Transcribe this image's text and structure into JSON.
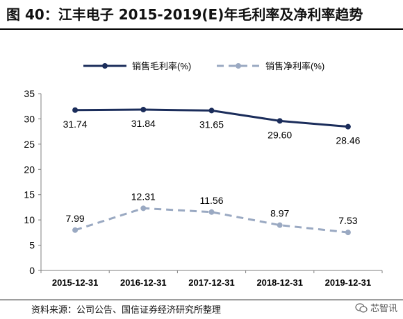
{
  "title": "图 40：江丰电子 2015-2019(E)年毛利率及净利率趋势",
  "source": "资料来源：公司公告、国信证券经济研究所整理",
  "watermark": {
    "text": "芯智讯",
    "icon": "wechat-icon"
  },
  "colors": {
    "gross": "#1b2d5b",
    "net": "#9aa9c2"
  },
  "chart_data": {
    "type": "line",
    "title": "",
    "xlabel": "",
    "ylabel": "",
    "categories": [
      "2015-12-31",
      "2016-12-31",
      "2017-12-31",
      "2018-12-31",
      "2019-12-31"
    ],
    "ylim": [
      0,
      35
    ],
    "yticks": [
      0,
      5,
      10,
      15,
      20,
      25,
      30,
      35
    ],
    "grid": false,
    "legend_position": "top",
    "series": [
      {
        "name": "销售毛利率(%)",
        "style": "solid",
        "values": [
          31.74,
          31.84,
          31.65,
          29.6,
          28.46
        ],
        "labels": [
          "31.74",
          "31.84",
          "31.65",
          "29.60",
          "28.46"
        ]
      },
      {
        "name": "销售净利率(%)",
        "style": "dashed",
        "values": [
          7.99,
          12.31,
          11.56,
          8.97,
          7.53
        ],
        "labels": [
          "7.99",
          "12.31",
          "11.56",
          "8.97",
          "7.53"
        ]
      }
    ]
  }
}
